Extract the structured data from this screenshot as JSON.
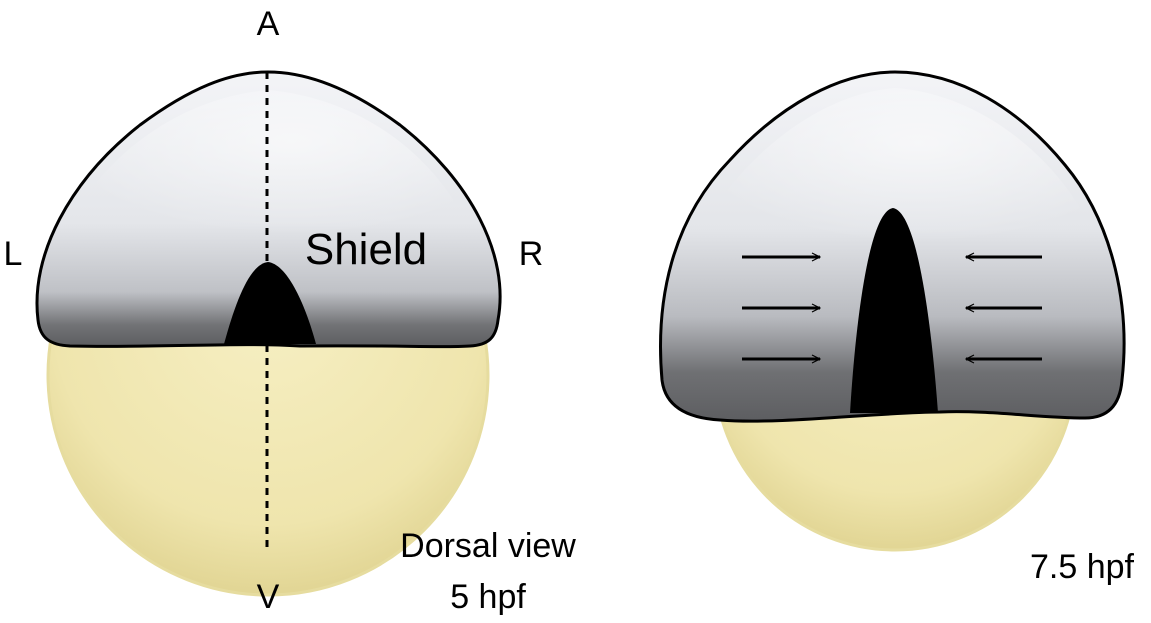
{
  "left_embryo": {
    "axis_labels": {
      "anterior": "A",
      "ventral": "V",
      "left": "L",
      "right": "R"
    },
    "structure_label": "Shield",
    "caption_line1": "Dorsal view",
    "caption_line2": "5 hpf"
  },
  "right_embryo": {
    "caption": "7.5 hpf",
    "convergence_arrows": {
      "pointing_right_count": 3,
      "pointing_left_count": 3
    }
  },
  "colors": {
    "blastoderm_light": "#f0f1f5",
    "blastoderm_mid": "#c9cbd0",
    "blastoderm_dark": "#6e6f72",
    "yolk_light": "#f3ebb8",
    "yolk_dark": "#d8cb85",
    "shield": "#000000",
    "outline": "#000000"
  }
}
